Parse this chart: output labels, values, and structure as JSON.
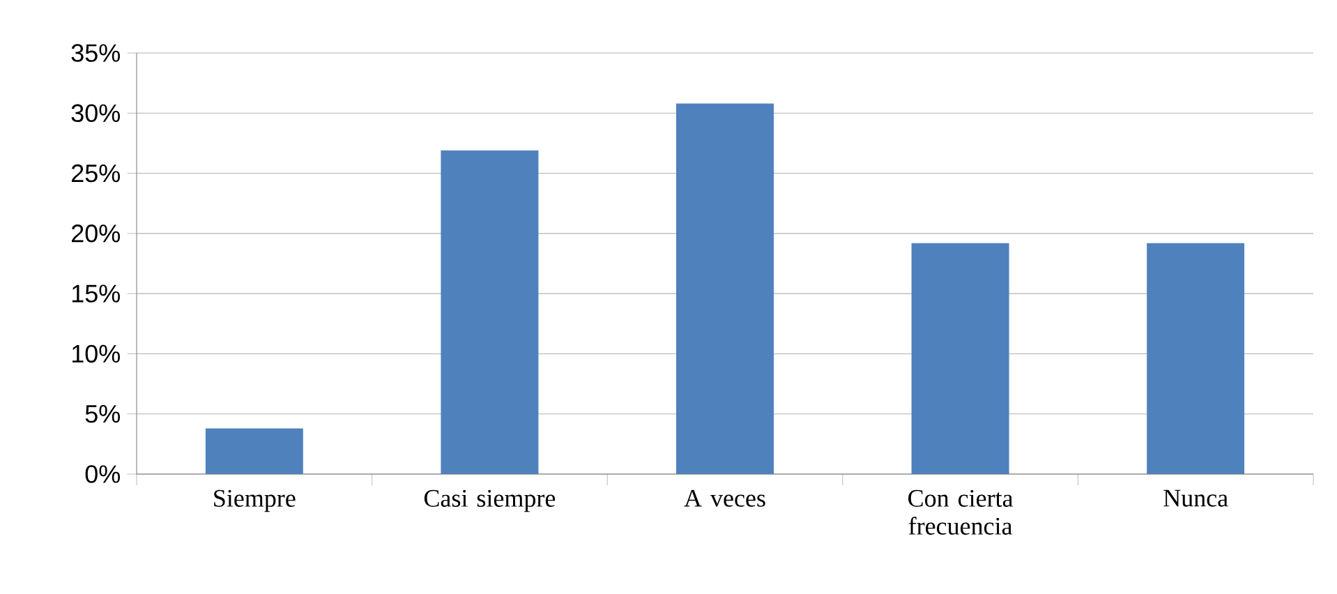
{
  "chart_data": {
    "type": "bar",
    "categories": [
      "Siempre",
      "Casi siempre",
      "A veces",
      "Con cierta frecuencia",
      "Nunca"
    ],
    "values": [
      3.8,
      26.9,
      30.8,
      19.2,
      19.2
    ],
    "color": "#4f81bd",
    "ylim": [
      0,
      35
    ],
    "yticks": [
      {
        "value": 0,
        "label": "0%"
      },
      {
        "value": 5,
        "label": "5%"
      },
      {
        "value": 10,
        "label": "10%"
      },
      {
        "value": 15,
        "label": "15%"
      },
      {
        "value": 20,
        "label": "20%"
      },
      {
        "value": 25,
        "label": "25%"
      },
      {
        "value": 30,
        "label": "30%"
      },
      {
        "value": 35,
        "label": "35%"
      }
    ],
    "grid": "y"
  }
}
